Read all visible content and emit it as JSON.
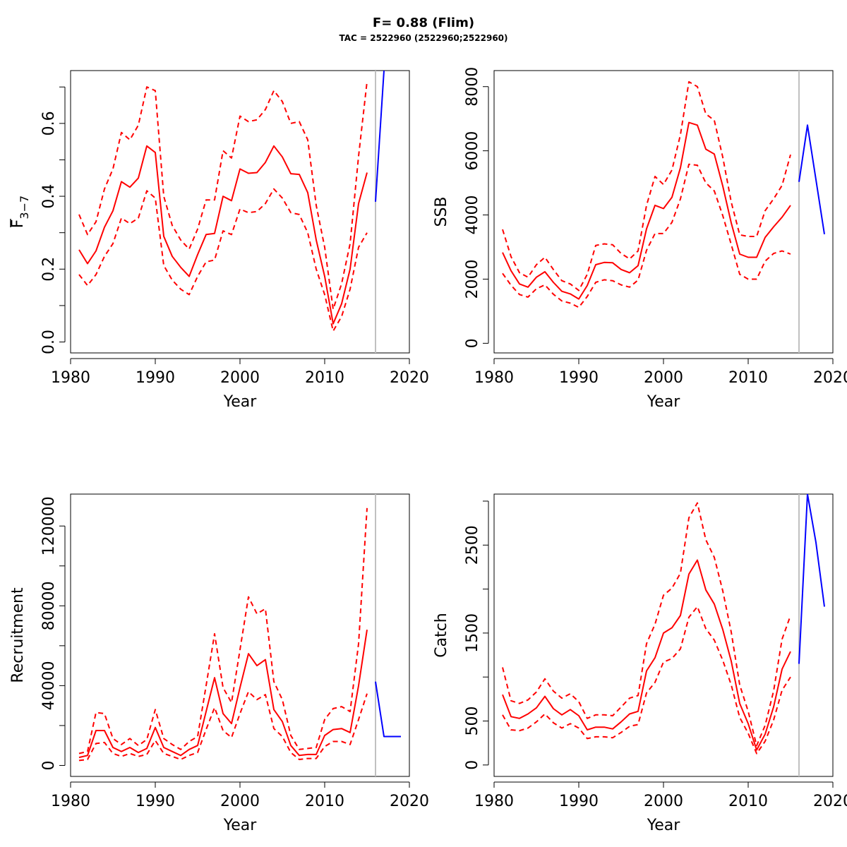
{
  "figure": {
    "title": "F= 0.88 (Flim)",
    "subtitle": "TAC = 2522960 (2522960;2522960)"
  },
  "colors": {
    "estimate": "#ff0000",
    "forecast": "#0000ff",
    "divider": "#c0c0c0"
  },
  "chart_data": [
    {
      "id": "fbar",
      "type": "line",
      "xlabel": "Year",
      "ylabel_main": "F",
      "ylabel_sub": "3−7",
      "xlim": [
        1980,
        2020
      ],
      "ylim": [
        -0.03,
        0.745
      ],
      "xticks": [
        1980,
        1990,
        2000,
        2010,
        2020
      ],
      "yticks": [
        0,
        0.1,
        0.2,
        0.3,
        0.4,
        0.5,
        0.6,
        0.7
      ],
      "yticklabels": [
        "0.0",
        "",
        "0.2",
        "",
        "0.4",
        "",
        "0.6",
        ""
      ],
      "divider_x": 2016,
      "x": [
        1981,
        1982,
        1983,
        1984,
        1985,
        1986,
        1987,
        1988,
        1989,
        1990,
        1991,
        1992,
        1993,
        1994,
        1995,
        1996,
        1997,
        1998,
        1999,
        2000,
        2001,
        2002,
        2003,
        2004,
        2005,
        2006,
        2007,
        2008,
        2009,
        2010,
        2011,
        2012,
        2013,
        2014,
        2015
      ],
      "series": [
        {
          "role": "estimate",
          "values": [
            0.253,
            0.215,
            0.25,
            0.315,
            0.36,
            0.44,
            0.425,
            0.45,
            0.538,
            0.52,
            0.29,
            0.235,
            0.205,
            0.18,
            0.24,
            0.295,
            0.298,
            0.4,
            0.388,
            0.475,
            0.463,
            0.465,
            0.493,
            0.538,
            0.508,
            0.462,
            0.46,
            0.41,
            0.28,
            0.18,
            0.05,
            0.105,
            0.2,
            0.38,
            0.465
          ]
        },
        {
          "role": "upper",
          "values": [
            0.35,
            0.295,
            0.33,
            0.42,
            0.475,
            0.575,
            0.555,
            0.595,
            0.7,
            0.69,
            0.4,
            0.32,
            0.28,
            0.255,
            0.31,
            0.39,
            0.39,
            0.525,
            0.505,
            0.62,
            0.605,
            0.61,
            0.638,
            0.69,
            0.66,
            0.6,
            0.605,
            0.555,
            0.375,
            0.26,
            0.09,
            0.16,
            0.27,
            0.51,
            0.715
          ]
        },
        {
          "role": "lower",
          "values": [
            0.185,
            0.155,
            0.185,
            0.235,
            0.27,
            0.34,
            0.325,
            0.34,
            0.415,
            0.395,
            0.21,
            0.17,
            0.145,
            0.13,
            0.18,
            0.22,
            0.225,
            0.305,
            0.295,
            0.365,
            0.355,
            0.358,
            0.38,
            0.42,
            0.395,
            0.355,
            0.35,
            0.3,
            0.2,
            0.13,
            0.03,
            0.07,
            0.145,
            0.26,
            0.3
          ]
        },
        {
          "role": "forecast",
          "x": [
            2016,
            2017
          ],
          "values": [
            0.385,
            0.745
          ]
        }
      ]
    },
    {
      "id": "ssb",
      "type": "line",
      "xlabel": "Year",
      "ylabel_main": "SSB",
      "xlim": [
        1980,
        2020
      ],
      "ylim": [
        -300,
        8500
      ],
      "xticks": [
        1980,
        1990,
        2000,
        2010,
        2020
      ],
      "yticks": [
        0,
        2000,
        4000,
        6000,
        8000
      ],
      "yticklabels": [
        "0",
        "2000",
        "4000",
        "6000",
        "8000"
      ],
      "divider_x": 2016,
      "x": [
        1981,
        1982,
        1983,
        1984,
        1985,
        1986,
        1987,
        1988,
        1989,
        1990,
        1991,
        1992,
        1993,
        1994,
        1995,
        1996,
        1997,
        1998,
        1999,
        2000,
        2001,
        2002,
        2003,
        2004,
        2005,
        2006,
        2007,
        2008,
        2009,
        2010,
        2011,
        2012,
        2013,
        2014,
        2015
      ],
      "series": [
        {
          "role": "estimate",
          "values": [
            2830,
            2260,
            1850,
            1750,
            2060,
            2230,
            1900,
            1620,
            1540,
            1380,
            1800,
            2450,
            2520,
            2510,
            2300,
            2200,
            2420,
            3570,
            4300,
            4200,
            4550,
            5470,
            6880,
            6800,
            6050,
            5900,
            4900,
            3750,
            2780,
            2680,
            2680,
            3300,
            3630,
            3930,
            4300
          ]
        },
        {
          "role": "upper",
          "values": [
            3550,
            2700,
            2200,
            2060,
            2450,
            2680,
            2300,
            1950,
            1850,
            1650,
            2150,
            3050,
            3100,
            3070,
            2800,
            2630,
            2880,
            4300,
            5200,
            4950,
            5400,
            6500,
            8150,
            8000,
            7150,
            6950,
            5800,
            4400,
            3380,
            3330,
            3330,
            4130,
            4500,
            4920,
            5880
          ]
        },
        {
          "role": "lower",
          "values": [
            2180,
            1810,
            1520,
            1440,
            1700,
            1820,
            1530,
            1320,
            1250,
            1120,
            1460,
            1900,
            1980,
            1950,
            1820,
            1750,
            1970,
            2900,
            3420,
            3420,
            3770,
            4500,
            5580,
            5550,
            5000,
            4750,
            3980,
            3080,
            2150,
            2000,
            2000,
            2560,
            2800,
            2880,
            2780
          ]
        },
        {
          "role": "forecast",
          "x": [
            2016,
            2017,
            2018,
            2019
          ],
          "values": [
            5030,
            6800,
            5100,
            3400
          ]
        }
      ]
    },
    {
      "id": "recruitment",
      "type": "line",
      "xlabel": "Year",
      "ylabel_main": "Recruitment",
      "xlim": [
        1980,
        2020
      ],
      "ylim": [
        -5500,
        136000
      ],
      "xticks": [
        1980,
        1990,
        2000,
        2010,
        2020
      ],
      "yticks": [
        0,
        20000,
        40000,
        60000,
        80000,
        100000,
        120000
      ],
      "yticklabels": [
        "0",
        "",
        "40000",
        "",
        "80000",
        "",
        "120000"
      ],
      "divider_x": 2016,
      "x": [
        1981,
        1982,
        1983,
        1984,
        1985,
        1986,
        1987,
        1988,
        1989,
        1990,
        1991,
        1992,
        1993,
        1994,
        1995,
        1996,
        1997,
        1998,
        1999,
        2000,
        2001,
        2002,
        2003,
        2004,
        2005,
        2006,
        2007,
        2008,
        2009,
        2010,
        2011,
        2012,
        2013,
        2014,
        2015
      ],
      "series": [
        {
          "role": "estimate",
          "values": [
            4000,
            5000,
            17500,
            17500,
            9000,
            7000,
            9000,
            6500,
            8500,
            19000,
            9000,
            7000,
            5000,
            8000,
            10000,
            27000,
            44000,
            26000,
            21000,
            39000,
            56000,
            50000,
            53000,
            28000,
            22000,
            10000,
            5000,
            5500,
            5500,
            15000,
            18000,
            18500,
            16500,
            40000,
            68000
          ]
        },
        {
          "role": "upper",
          "values": [
            6000,
            7000,
            26500,
            26000,
            13500,
            10500,
            13500,
            10000,
            13000,
            28000,
            13500,
            10500,
            8000,
            12000,
            14500,
            40000,
            66000,
            39000,
            31500,
            58000,
            84500,
            76000,
            78500,
            42000,
            33000,
            15000,
            8000,
            8500,
            9000,
            23000,
            28500,
            29500,
            27000,
            61000,
            129000
          ]
        },
        {
          "role": "lower",
          "values": [
            2500,
            3000,
            11000,
            11500,
            6000,
            4500,
            6000,
            4500,
            5500,
            12500,
            6000,
            4500,
            3000,
            5000,
            6500,
            18000,
            29000,
            17500,
            14000,
            26000,
            37000,
            33000,
            35500,
            18500,
            14500,
            6500,
            3000,
            3500,
            3500,
            9500,
            12000,
            12000,
            10500,
            23000,
            36000
          ]
        },
        {
          "role": "forecast",
          "x": [
            2016,
            2017,
            2018,
            2019
          ],
          "values": [
            42000,
            14500,
            14500,
            14500
          ]
        }
      ]
    },
    {
      "id": "catch",
      "type": "line",
      "xlabel": "Year",
      "ylabel_main": "Catch",
      "xlim": [
        1980,
        2020
      ],
      "ylim": [
        -130,
        3080
      ],
      "xticks": [
        1980,
        1990,
        2000,
        2010,
        2020
      ],
      "yticks": [
        0,
        500,
        1000,
        1500,
        2000,
        2500,
        3000
      ],
      "yticklabels": [
        "0",
        "500",
        "",
        "1500",
        "",
        "2500",
        ""
      ],
      "divider_x": 2016,
      "x": [
        1981,
        1982,
        1983,
        1984,
        1985,
        1986,
        1987,
        1988,
        1989,
        1990,
        1991,
        1992,
        1993,
        1994,
        1995,
        1996,
        1997,
        1998,
        1999,
        2000,
        2001,
        2002,
        2003,
        2004,
        2005,
        2006,
        2007,
        2008,
        2009,
        2010,
        2011,
        2012,
        2013,
        2014,
        2015
      ],
      "series": [
        {
          "role": "estimate",
          "values": [
            800,
            550,
            530,
            580,
            650,
            780,
            640,
            570,
            630,
            560,
            400,
            430,
            430,
            410,
            490,
            580,
            610,
            1070,
            1220,
            1500,
            1560,
            1700,
            2170,
            2330,
            1990,
            1830,
            1540,
            1180,
            700,
            470,
            170,
            350,
            660,
            1090,
            1290
          ]
        },
        {
          "role": "upper",
          "values": [
            1110,
            730,
            700,
            740,
            830,
            980,
            840,
            760,
            810,
            720,
            530,
            570,
            570,
            560,
            660,
            760,
            790,
            1380,
            1600,
            1930,
            2010,
            2180,
            2810,
            2980,
            2560,
            2360,
            1980,
            1510,
            910,
            610,
            220,
            450,
            840,
            1430,
            1700
          ]
        },
        {
          "role": "lower",
          "values": [
            570,
            400,
            390,
            420,
            490,
            580,
            480,
            420,
            470,
            420,
            300,
            320,
            320,
            310,
            370,
            440,
            460,
            820,
            940,
            1170,
            1210,
            1320,
            1680,
            1800,
            1550,
            1420,
            1190,
            910,
            540,
            360,
            130,
            270,
            510,
            850,
            1000
          ]
        },
        {
          "role": "forecast",
          "x": [
            2016,
            2017,
            2018,
            2019
          ],
          "values": [
            1150,
            3080,
            2530,
            1800
          ]
        }
      ]
    }
  ]
}
